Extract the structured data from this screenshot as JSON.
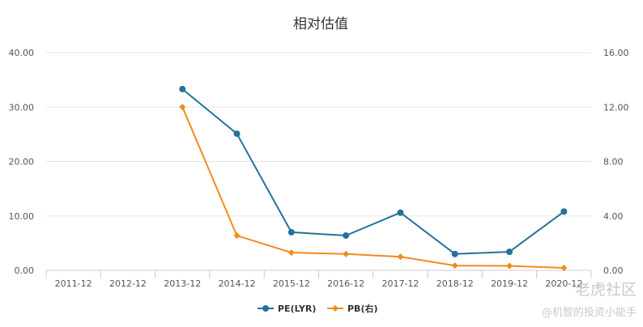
{
  "chart_data": {
    "type": "line",
    "title": "相对估值",
    "categories": [
      "2011-12",
      "2012-12",
      "2013-12",
      "2014-12",
      "2015-12",
      "2016-12",
      "2017-12",
      "2018-12",
      "2019-12",
      "2020-12"
    ],
    "y_left": {
      "min": 0,
      "max": 40,
      "ticks": [
        "0.00",
        "10.00",
        "20.00",
        "30.00",
        "40.00"
      ]
    },
    "y_right": {
      "min": 0,
      "max": 16,
      "ticks": [
        "0.00",
        "4.00",
        "8.00",
        "12.00",
        "16.00"
      ]
    },
    "grid": "horizontal",
    "legend_position": "bottom-center",
    "series": [
      {
        "name": "PE(LYR)",
        "axis": "left",
        "color": "#23729a",
        "marker": "circle",
        "values": [
          null,
          null,
          33.3,
          25.1,
          7.0,
          6.4,
          10.6,
          3.0,
          3.4,
          10.8
        ]
      },
      {
        "name": "PB(右)",
        "axis": "right",
        "color": "#f18b1e",
        "marker": "diamond",
        "values": [
          null,
          null,
          12.0,
          2.55,
          1.3,
          1.2,
          1.0,
          0.35,
          0.33,
          0.18
        ]
      }
    ]
  },
  "watermark": {
    "main": "老虎社区",
    "sub": "@机智的投资小能手"
  }
}
